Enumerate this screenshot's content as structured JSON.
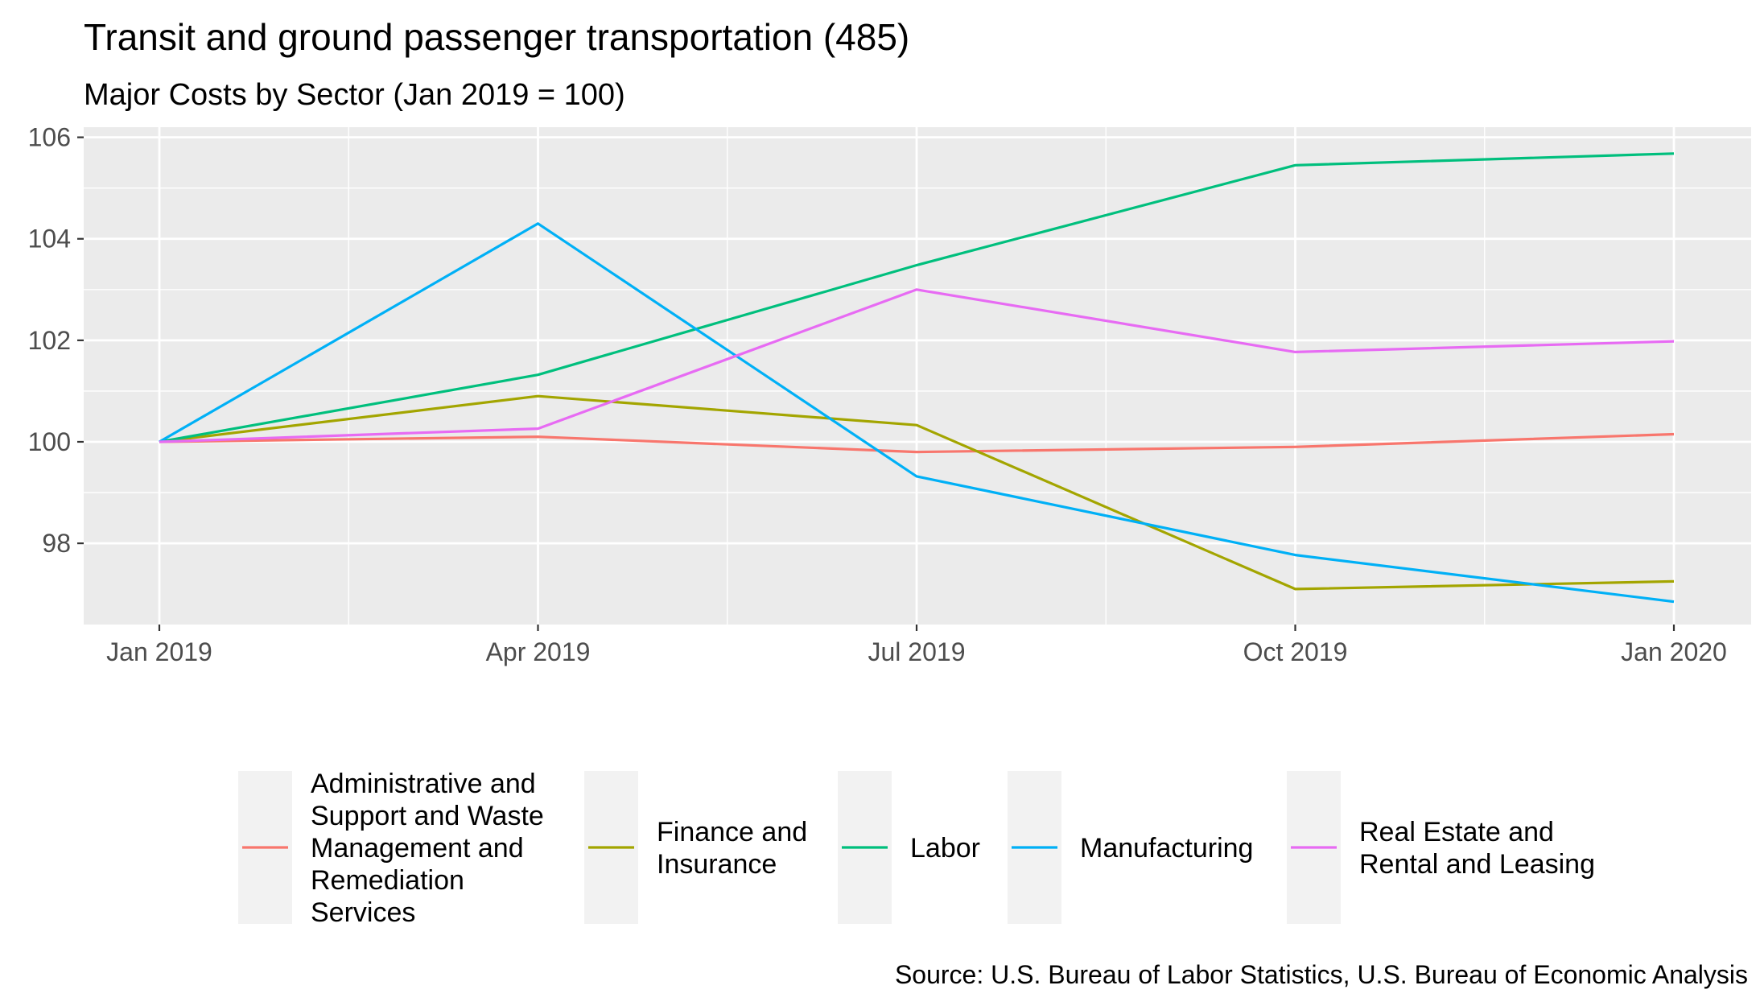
{
  "chart_data": {
    "type": "line",
    "title": "Transit and ground passenger transportation (485)",
    "subtitle": "Major Costs by Sector (Jan 2019 = 100)",
    "caption": "Source: U.S. Bureau of Labor Statistics, U.S. Bureau of Economic Analysis",
    "xlabel": "",
    "ylabel": "",
    "x": [
      "2019-01",
      "2019-04",
      "2019-07",
      "2019-10",
      "2020-01"
    ],
    "x_tick_labels": [
      "Jan 2019",
      "Apr 2019",
      "Jul 2019",
      "Oct 2019",
      "Jan 2020"
    ],
    "y_ticks": [
      98,
      100,
      102,
      104,
      106
    ],
    "ylim": [
      96.4,
      106.2
    ],
    "grid": true,
    "legend_position": "bottom",
    "series": [
      {
        "name": "Administrative and Support and Waste Management and Remediation Services",
        "legend_lines": [
          "Administrative and",
          "Support and Waste",
          "Management and",
          "Remediation",
          "Services"
        ],
        "color": "#F8766D",
        "values": [
          100.0,
          100.1,
          99.8,
          99.9,
          100.15
        ]
      },
      {
        "name": "Finance and Insurance",
        "legend_lines": [
          "Finance and",
          "Insurance"
        ],
        "color": "#A3A500",
        "values": [
          100.0,
          100.9,
          100.33,
          97.1,
          97.25
        ]
      },
      {
        "name": "Labor",
        "legend_lines": [
          "Labor"
        ],
        "color": "#00BF7D",
        "values": [
          100.0,
          101.32,
          103.48,
          105.45,
          105.68
        ]
      },
      {
        "name": "Manufacturing",
        "legend_lines": [
          "Manufacturing"
        ],
        "color": "#00B0F6",
        "values": [
          100.0,
          104.3,
          99.32,
          97.77,
          96.85
        ]
      },
      {
        "name": "Real Estate and Rental and Leasing",
        "legend_lines": [
          "Real Estate and",
          "Rental and Leasing"
        ],
        "color": "#E76BF3",
        "values": [
          100.0,
          100.26,
          103.0,
          101.77,
          101.98
        ]
      }
    ]
  }
}
